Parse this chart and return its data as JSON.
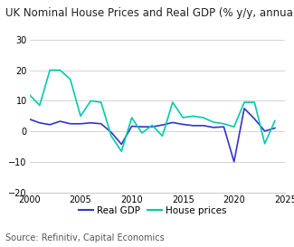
{
  "title": "UK Nominal House Prices and Real GDP (% y/y, annual)",
  "source_text": "Source: Refinitiv, Capital Economics",
  "ylim": [
    -20,
    30
  ],
  "yticks": [
    -20,
    -10,
    0,
    10,
    20,
    30
  ],
  "xlim": [
    2000,
    2025
  ],
  "xticks": [
    2000,
    2005,
    2010,
    2015,
    2020,
    2025
  ],
  "gdp_color": "#3333cc",
  "house_color": "#00ccaa",
  "legend_labels": [
    "Real GDP",
    "House prices"
  ],
  "gdp_data": {
    "years": [
      2000,
      2001,
      2002,
      2003,
      2004,
      2005,
      2006,
      2007,
      2008,
      2009,
      2010,
      2011,
      2012,
      2013,
      2014,
      2015,
      2016,
      2017,
      2018,
      2019,
      2020,
      2021,
      2022,
      2023,
      2024
    ],
    "values": [
      4.0,
      2.8,
      2.2,
      3.3,
      2.5,
      2.5,
      2.8,
      2.5,
      -0.3,
      -4.2,
      1.7,
      1.5,
      1.5,
      2.1,
      2.9,
      2.3,
      1.9,
      1.9,
      1.3,
      1.5,
      -9.9,
      7.5,
      4.1,
      0.1,
      1.1
    ]
  },
  "house_data": {
    "years": [
      2000,
      2001,
      2002,
      2003,
      2004,
      2005,
      2006,
      2007,
      2008,
      2009,
      2010,
      2011,
      2012,
      2013,
      2014,
      2015,
      2016,
      2017,
      2018,
      2019,
      2020,
      2021,
      2022,
      2023,
      2024
    ],
    "values": [
      12.0,
      8.5,
      20.0,
      20.0,
      17.0,
      5.0,
      10.0,
      9.5,
      -1.5,
      -6.5,
      4.5,
      -0.5,
      2.0,
      -1.5,
      9.5,
      4.5,
      5.0,
      4.5,
      3.0,
      2.5,
      1.5,
      9.5,
      9.5,
      -4.0,
      3.5
    ]
  },
  "title_fontsize": 8.5,
  "source_fontsize": 7,
  "tick_fontsize": 7,
  "legend_fontsize": 7.5,
  "line_width": 1.2,
  "background_color": "#ffffff",
  "grid_color": "#cccccc"
}
